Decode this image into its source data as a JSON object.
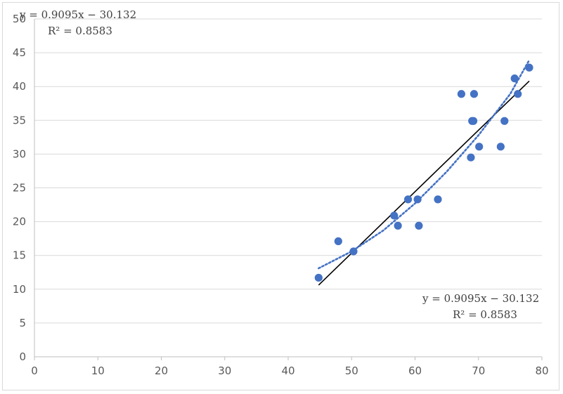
{
  "chart_data": {
    "type": "scatter",
    "title": "",
    "xlabel": "",
    "ylabel": "",
    "xlim": [
      0,
      80
    ],
    "ylim": [
      0,
      50
    ],
    "x_ticks": [
      "0",
      "10",
      "20",
      "30",
      "40",
      "50",
      "60",
      "70",
      "80"
    ],
    "y_ticks": [
      "0",
      "5",
      "10",
      "15",
      "20",
      "25",
      "30",
      "35",
      "40",
      "45",
      "50"
    ],
    "grid": "horizontal",
    "points": [
      {
        "x": 44.8,
        "y": 11.7
      },
      {
        "x": 47.9,
        "y": 17.1
      },
      {
        "x": 50.3,
        "y": 15.6
      },
      {
        "x": 56.7,
        "y": 20.9
      },
      {
        "x": 57.3,
        "y": 19.4
      },
      {
        "x": 58.9,
        "y": 23.3
      },
      {
        "x": 60.4,
        "y": 23.3
      },
      {
        "x": 60.6,
        "y": 19.4
      },
      {
        "x": 63.6,
        "y": 23.3
      },
      {
        "x": 67.3,
        "y": 38.9
      },
      {
        "x": 68.8,
        "y": 29.5
      },
      {
        "x": 69.0,
        "y": 34.9
      },
      {
        "x": 69.2,
        "y": 34.9
      },
      {
        "x": 69.3,
        "y": 38.9
      },
      {
        "x": 70.1,
        "y": 31.1
      },
      {
        "x": 73.5,
        "y": 31.1
      },
      {
        "x": 74.1,
        "y": 34.9
      },
      {
        "x": 75.7,
        "y": 41.2
      },
      {
        "x": 76.2,
        "y": 38.9
      },
      {
        "x": 78.0,
        "y": 42.8
      }
    ],
    "trendlines": [
      {
        "kind": "linear",
        "slope": 0.9095,
        "intercept": -30.132,
        "x_range": [
          44.8,
          78.0
        ],
        "color": "#000000",
        "style": "solid"
      },
      {
        "kind": "polynomial",
        "color": "#4472c4",
        "style": "dotted",
        "points": [
          {
            "x": 44.8,
            "y": 13.1
          },
          {
            "x": 50.0,
            "y": 15.6
          },
          {
            "x": 55.0,
            "y": 18.7
          },
          {
            "x": 60.0,
            "y": 22.7
          },
          {
            "x": 65.0,
            "y": 27.4
          },
          {
            "x": 70.0,
            "y": 32.8
          },
          {
            "x": 75.0,
            "y": 38.9
          },
          {
            "x": 78.0,
            "y": 43.9
          }
        ]
      }
    ],
    "annotations": [
      {
        "line1": "y = 0.9095x − 30.132",
        "line2": "R² = 0.8583",
        "position": "top-left"
      },
      {
        "line1": "y = 0.9095x − 30.132",
        "line2": "R² = 0.8583",
        "position": "bottom-right"
      }
    ],
    "colors": {
      "marker": "#4472c4",
      "grid": "#d9d9d9",
      "axis": "#bfbfbf",
      "linear_trend": "#000000"
    }
  }
}
